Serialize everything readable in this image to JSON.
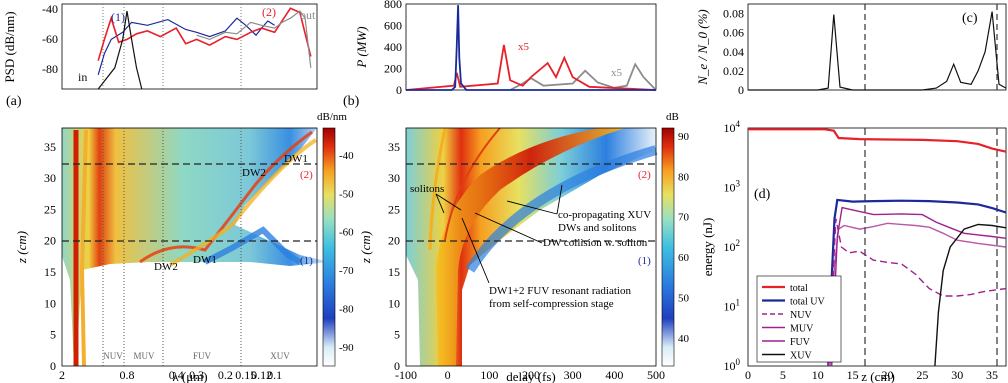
{
  "colors": {
    "red": "#e8202a",
    "blue": "#1a2a9a",
    "gray": "#8c8c8c",
    "purple": "#a0208c",
    "black": "#111111",
    "cmap": [
      "#1f3fbf",
      "#2c7fe0",
      "#3fc0e0",
      "#9be0c0",
      "#e8e060",
      "#f7a020",
      "#e03010",
      "#a00000"
    ]
  },
  "panel_labels": [
    "(a)",
    "(b)",
    "(c)",
    "(d)"
  ],
  "chart_data": [
    {
      "id": "psd-top",
      "type": "line",
      "ylabel": "PSD (dB/nm)",
      "ylim": [
        -95,
        -35
      ],
      "yticks": [
        "-40",
        "-60",
        "-80"
      ],
      "series_labels": [
        "(1)",
        "(2)",
        "out",
        "in"
      ],
      "series": [
        {
          "points": [
            [
              1.2,
              -85
            ],
            [
              1.1,
              -70
            ],
            [
              1.0,
              -60
            ],
            [
              0.85,
              -55
            ],
            [
              0.75,
              -48
            ],
            [
              0.6,
              -50
            ],
            [
              0.45,
              -46
            ],
            [
              0.35,
              -53
            ],
            [
              0.3,
              -55
            ],
            [
              0.25,
              -58
            ],
            [
              0.2,
              -54
            ],
            [
              0.17,
              -45
            ],
            [
              0.15,
              -50
            ],
            [
              0.13,
              -57
            ],
            [
              0.12,
              -52
            ],
            [
              0.11,
              -47
            ],
            [
              0.1,
              -50
            ]
          ]
        },
        {
          "points": [
            [
              1.2,
              -75
            ],
            [
              1.1,
              -60
            ],
            [
              1.0,
              -45
            ],
            [
              0.9,
              -62
            ],
            [
              0.8,
              -60
            ],
            [
              0.7,
              -56
            ],
            [
              0.6,
              -54
            ],
            [
              0.5,
              -58
            ],
            [
              0.4,
              -52
            ],
            [
              0.35,
              -63
            ],
            [
              0.3,
              -60
            ],
            [
              0.25,
              -64
            ],
            [
              0.2,
              -58
            ],
            [
              0.17,
              -60
            ],
            [
              0.14,
              -55
            ],
            [
              0.12,
              -52
            ],
            [
              0.1,
              -55
            ],
            [
              0.08,
              -38
            ],
            [
              0.07,
              -41
            ],
            [
              0.06,
              -72
            ]
          ]
        },
        {
          "points": [
            [
              0.3,
              -57
            ],
            [
              0.25,
              -60
            ],
            [
              0.2,
              -55
            ],
            [
              0.17,
              -56
            ],
            [
              0.14,
              -48
            ],
            [
              0.12,
              -50
            ],
            [
              0.1,
              -52
            ],
            [
              0.09,
              -48
            ],
            [
              0.08,
              -45
            ],
            [
              0.07,
              -40
            ],
            [
              0.065,
              -45
            ],
            [
              0.06,
              -80
            ]
          ]
        },
        {
          "points": [
            [
              1.2,
              -95
            ],
            [
              0.95,
              -80
            ],
            [
              0.85,
              -60
            ],
            [
              0.8,
              -40
            ],
            [
              0.75,
              -60
            ],
            [
              0.7,
              -80
            ],
            [
              0.65,
              -95
            ]
          ]
        }
      ]
    },
    {
      "id": "power-top",
      "type": "line",
      "ylabel": "P (MW)",
      "ylim": [
        0,
        800
      ],
      "yticks": [
        "0",
        "200",
        "400",
        "600",
        "800"
      ],
      "annotations": [
        "x5",
        "x5"
      ],
      "series": [
        {
          "points": [
            [
              -100,
              0
            ],
            [
              10,
              0
            ],
            [
              18,
              30
            ],
            [
              22,
              420
            ],
            [
              25,
              790
            ],
            [
              28,
              300
            ],
            [
              32,
              60
            ],
            [
              45,
              0
            ],
            [
              500,
              0
            ]
          ]
        },
        {
          "points": [
            [
              -100,
              0
            ],
            [
              15,
              40
            ],
            [
              22,
              160
            ],
            [
              30,
              30
            ],
            [
              120,
              60
            ],
            [
              135,
              420
            ],
            [
              150,
              90
            ],
            [
              180,
              40
            ],
            [
              200,
              120
            ],
            [
              240,
              250
            ],
            [
              260,
              120
            ],
            [
              280,
              300
            ],
            [
              300,
              120
            ],
            [
              340,
              30
            ],
            [
              500,
              0
            ]
          ]
        },
        {
          "points": [
            [
              150,
              0
            ],
            [
              180,
              60
            ],
            [
              200,
              110
            ],
            [
              230,
              40
            ],
            [
              300,
              60
            ],
            [
              330,
              180
            ],
            [
              360,
              70
            ],
            [
              400,
              20
            ],
            [
              430,
              40
            ],
            [
              450,
              240
            ],
            [
              470,
              120
            ],
            [
              490,
              40
            ],
            [
              500,
              0
            ]
          ]
        }
      ]
    },
    {
      "id": "ionization-c",
      "type": "line",
      "ylabel": "N_e / N_0 (%)",
      "ylim": [
        0,
        0.09
      ],
      "yticks": [
        "0",
        "0.02",
        "0.04",
        "0.06",
        "0.08"
      ],
      "series": [
        {
          "points": [
            [
              0,
              0
            ],
            [
              10,
              0
            ],
            [
              11.5,
              0.002
            ],
            [
              12.3,
              0.079
            ],
            [
              13.2,
              0.003
            ],
            [
              15,
              0
            ],
            [
              25,
              0
            ],
            [
              27,
              0.002
            ],
            [
              28.5,
              0.009
            ],
            [
              29.5,
              0.027
            ],
            [
              30.5,
              0.008
            ],
            [
              32,
              0.006
            ],
            [
              33,
              0.02
            ],
            [
              34,
              0.04
            ],
            [
              35,
              0.082
            ],
            [
              36,
              0.006
            ],
            [
              37,
              0.002
            ]
          ]
        }
      ]
    },
    {
      "id": "map-a",
      "type": "heatmap",
      "xlabel": "λ (μm)",
      "ylabel": "z (cm)",
      "xticks": [
        "2",
        "0.8",
        "0.4",
        "0.3",
        "0.2",
        "0.15",
        "0.12",
        "0.1"
      ],
      "yticks": [
        "0",
        "5",
        "10",
        "15",
        "20",
        "25",
        "30",
        "35"
      ],
      "xlim": [
        2,
        0.055
      ],
      "ylim": [
        0,
        38
      ],
      "colorbar_label": "dB/nm",
      "colorbar_ticks": [
        "-40",
        "-50",
        "-60",
        "-70",
        "-80",
        "-90"
      ],
      "colorbar_range": [
        -95,
        -33
      ],
      "bands": [
        "NUV",
        "MUV",
        "FUV",
        "XUV"
      ],
      "annotations": [
        "DW1",
        "DW2",
        "DW2",
        "DW1",
        "(2)",
        "(1)"
      ],
      "dashed_lines_z": [
        17,
        36
      ]
    },
    {
      "id": "map-b",
      "type": "heatmap",
      "xlabel": "delay (fs)",
      "ylabel": "z (cm)",
      "xticks": [
        "-100",
        "0",
        "100",
        "200",
        "300",
        "400",
        "500"
      ],
      "yticks": [
        "0",
        "5",
        "10",
        "15",
        "20",
        "25",
        "30",
        "35"
      ],
      "xlim": [
        -100,
        500
      ],
      "ylim": [
        0,
        38
      ],
      "colorbar_label": "dB",
      "colorbar_ticks": [
        "40",
        "50",
        "60",
        "70",
        "80",
        "90"
      ],
      "colorbar_range": [
        33,
        92
      ],
      "annotations": [
        "solitons",
        "co-propagating XUV",
        "DWs and solitons",
        "DW collision w. soliton",
        "DW1+2 FUV resonant radiation",
        "from self-compression stage",
        "(2)",
        "(1)"
      ],
      "dashed_lines_z": [
        17,
        36
      ]
    },
    {
      "id": "energy-d",
      "type": "line",
      "xlabel": "z (cm)",
      "ylabel": "energy (nJ)",
      "xticks": [
        "0",
        "5",
        "10",
        "15",
        "20",
        "25",
        "30",
        "35"
      ],
      "xlim": [
        0,
        37
      ],
      "ylim": [
        1,
        10000
      ],
      "log_y": true,
      "yticks": [
        "10^0",
        "10^1",
        "10^2",
        "10^3",
        "10^4"
      ],
      "legend_position": "bottom-left",
      "dashed_lines_z": [
        17,
        36
      ],
      "series": [
        {
          "name": "total",
          "style": "solid",
          "points": [
            [
              0,
              9500
            ],
            [
              11,
              9500
            ],
            [
              12.3,
              9000
            ],
            [
              13,
              6800
            ],
            [
              16,
              6500
            ],
            [
              20,
              6400
            ],
            [
              25,
              6300
            ],
            [
              30,
              6000
            ],
            [
              33,
              5400
            ],
            [
              35,
              4500
            ],
            [
              37,
              4000
            ]
          ]
        },
        {
          "name": "total UV",
          "style": "solid",
          "points": [
            [
              11.5,
              1
            ],
            [
              12,
              30
            ],
            [
              12.4,
              300
            ],
            [
              12.8,
              620
            ],
            [
              15,
              580
            ],
            [
              18,
              590
            ],
            [
              22,
              600
            ],
            [
              26,
              590
            ],
            [
              30,
              560
            ],
            [
              33,
              520
            ],
            [
              35,
              450
            ],
            [
              37,
              380
            ]
          ]
        },
        {
          "name": "NUV",
          "style": "dashed",
          "points": [
            [
              11.5,
              1
            ],
            [
              12.1,
              20
            ],
            [
              12.6,
              300
            ],
            [
              13.4,
              100
            ],
            [
              14.5,
              80
            ],
            [
              16,
              85
            ],
            [
              18,
              60
            ],
            [
              20,
              55
            ],
            [
              22,
              52
            ],
            [
              24,
              35
            ],
            [
              26,
              20
            ],
            [
              28,
              15
            ],
            [
              30,
              15
            ],
            [
              32,
              16
            ],
            [
              34,
              18
            ],
            [
              37,
              20
            ]
          ]
        },
        {
          "name": "MUV",
          "style": "solid",
          "points": [
            [
              11.8,
              1
            ],
            [
              12.4,
              50
            ],
            [
              13,
              200
            ],
            [
              13.8,
              230
            ],
            [
              16,
              200
            ],
            [
              18,
              220
            ],
            [
              20,
              250
            ],
            [
              22,
              240
            ],
            [
              24,
              230
            ],
            [
              26,
              215
            ],
            [
              28,
              170
            ],
            [
              30,
              130
            ],
            [
              33,
              115
            ],
            [
              37,
              100
            ]
          ]
        },
        {
          "name": "FUV",
          "style": "solid",
          "points": [
            [
              12,
              1
            ],
            [
              12.8,
              150
            ],
            [
              13.5,
              460
            ],
            [
              15,
              420
            ],
            [
              18,
              350
            ],
            [
              22,
              360
            ],
            [
              25,
              350
            ],
            [
              27,
              260
            ],
            [
              29,
              210
            ],
            [
              31,
              170
            ],
            [
              33,
              160
            ],
            [
              35,
              150
            ],
            [
              37,
              140
            ]
          ]
        },
        {
          "name": "XUV",
          "style": "solid",
          "points": [
            [
              26.8,
              1
            ],
            [
              27.3,
              8
            ],
            [
              28,
              40
            ],
            [
              29,
              100
            ],
            [
              31,
              200
            ],
            [
              33,
              240
            ],
            [
              35,
              230
            ],
            [
              37,
              210
            ]
          ]
        }
      ]
    }
  ]
}
